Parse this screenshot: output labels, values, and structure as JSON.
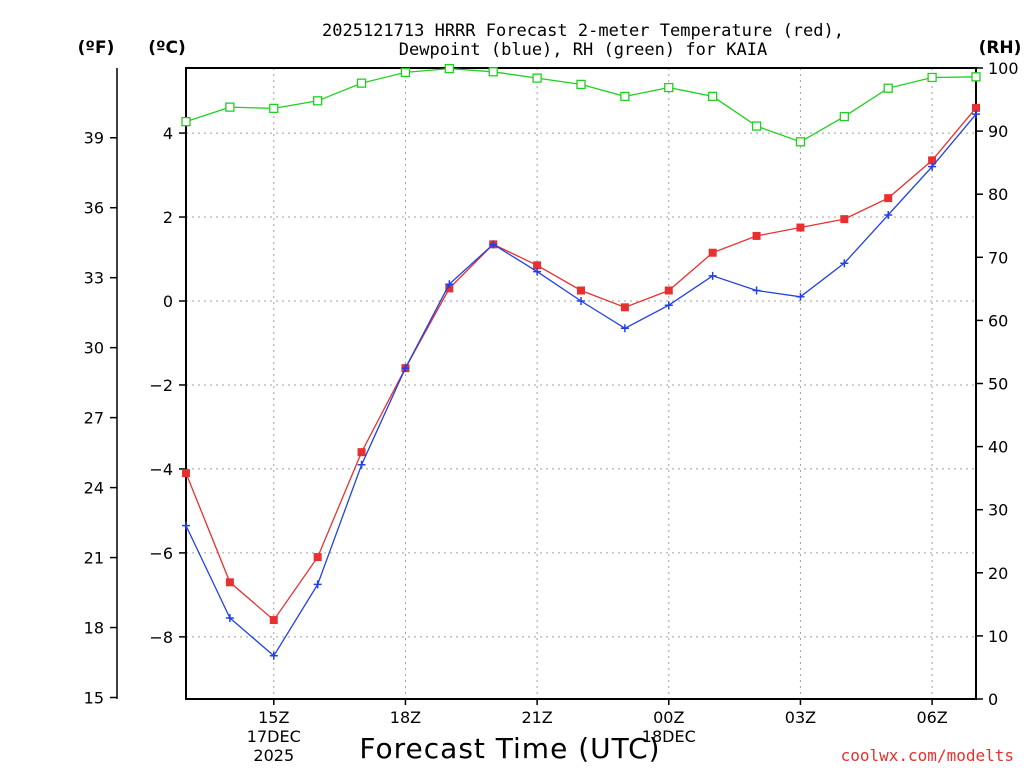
{
  "chart_data": {
    "type": "line",
    "title": "2025121713 HRRR Forecast 2-meter Temperature (red),",
    "subtitle": "Dewpoint (blue), RH (green) for KAIA",
    "xlabel": "Forecast Time (UTC)",
    "credit": "coolwx.com/modelts",
    "axis_labels": {
      "fahrenheit": "(ºF)",
      "celsius": "(ºC)",
      "rh": "(RH)"
    },
    "x": [
      13,
      14,
      15,
      16,
      17,
      18,
      19,
      20,
      21,
      22,
      23,
      24,
      25,
      26,
      27,
      28,
      29,
      30,
      31
    ],
    "xlim": [
      13,
      31
    ],
    "x_ticks": [
      {
        "x": 15,
        "label": "15Z",
        "sub1": "17DEC",
        "sub2": "2025"
      },
      {
        "x": 18,
        "label": "18Z",
        "sub1": "",
        "sub2": ""
      },
      {
        "x": 21,
        "label": "21Z",
        "sub1": "",
        "sub2": ""
      },
      {
        "x": 24,
        "label": "00Z",
        "sub1": "18DEC",
        "sub2": ""
      },
      {
        "x": 27,
        "label": "03Z",
        "sub1": "",
        "sub2": ""
      },
      {
        "x": 30,
        "label": "06Z",
        "sub1": "",
        "sub2": ""
      }
    ],
    "celsius_axis": {
      "ylim": [
        -9.48,
        5.55
      ],
      "ticks": [
        -8,
        -6,
        -4,
        -2,
        0,
        2,
        4
      ],
      "tick_labels": [
        "−8",
        "−6",
        "−4",
        "−2",
        "0",
        "2",
        "4"
      ]
    },
    "fahrenheit_axis": {
      "ticks": [
        15,
        18,
        21,
        24,
        27,
        30,
        33,
        36,
        39
      ]
    },
    "rh_axis": {
      "ylim": [
        0,
        100
      ],
      "ticks": [
        0,
        10,
        20,
        30,
        40,
        50,
        60,
        70,
        80,
        90,
        100
      ]
    },
    "series": [
      {
        "name": "Temperature",
        "axis": "celsius",
        "color": "#e83030",
        "marker": "square-filled",
        "values": [
          -4.1,
          -6.7,
          -7.6,
          -6.1,
          -3.6,
          -1.6,
          0.3,
          1.35,
          0.85,
          0.25,
          -0.15,
          0.25,
          1.15,
          1.55,
          1.75,
          1.95,
          2.45,
          3.35,
          4.6
        ]
      },
      {
        "name": "Dewpoint",
        "axis": "celsius",
        "color": "#2040e8",
        "marker": "plus",
        "values": [
          -5.35,
          -7.55,
          -8.45,
          -6.75,
          -3.9,
          -1.6,
          0.4,
          1.35,
          0.7,
          0.0,
          -0.65,
          -0.1,
          0.6,
          0.25,
          0.1,
          0.9,
          2.05,
          3.2,
          4.45
        ]
      },
      {
        "name": "RH",
        "axis": "rh",
        "color": "#20d020",
        "marker": "square-open",
        "values": [
          91.5,
          93.8,
          93.6,
          94.8,
          97.6,
          99.3,
          99.9,
          99.4,
          98.4,
          97.4,
          95.5,
          96.9,
          95.5,
          90.8,
          88.3,
          92.3,
          96.8,
          98.5,
          98.6
        ]
      }
    ]
  }
}
